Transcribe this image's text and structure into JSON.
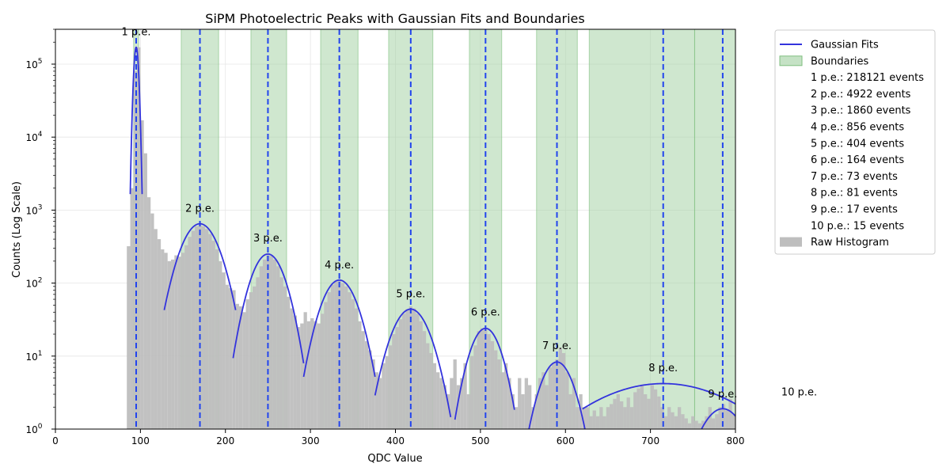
{
  "chart_data": {
    "type": "bar",
    "title": "SiPM Photoelectric Peaks with Gaussian Fits and Boundaries",
    "xlabel": "QDC Value",
    "ylabel": "Counts (Log Scale)",
    "xlim": [
      0,
      800
    ],
    "ylim": [
      1,
      300000
    ],
    "yscale": "log",
    "grid": true,
    "legend_position": "outside-top-right",
    "x_ticks": [
      "0",
      "100",
      "200",
      "300",
      "400",
      "500",
      "600",
      "700",
      "800"
    ],
    "y_ticks": [
      {
        "value": 1,
        "base": "10",
        "exp": "0"
      },
      {
        "value": 10,
        "base": "10",
        "exp": "1"
      },
      {
        "value": 100,
        "base": "10",
        "exp": "2"
      },
      {
        "value": 1000,
        "base": "10",
        "exp": "3"
      },
      {
        "value": 10000,
        "base": "10",
        "exp": "4"
      },
      {
        "value": 100000,
        "base": "10",
        "exp": "5"
      }
    ],
    "colors": {
      "histogram": "#bebebe",
      "fit": "#3333dd",
      "peak_line": "#2244ee",
      "boundary": "#9fcf9f"
    },
    "legend": [
      {
        "label": "Gaussian Fits",
        "kind": "line"
      },
      {
        "label": "Boundaries",
        "kind": "patch-green"
      },
      {
        "label": "1 p.e.: 218121 events",
        "kind": "none"
      },
      {
        "label": "2 p.e.: 4922 events",
        "kind": "none"
      },
      {
        "label": "3 p.e.: 1860 events",
        "kind": "none"
      },
      {
        "label": "4 p.e.: 856 events",
        "kind": "none"
      },
      {
        "label": "5 p.e.: 404 events",
        "kind": "none"
      },
      {
        "label": "6 p.e.: 164 events",
        "kind": "none"
      },
      {
        "label": "7 p.e.: 73 events",
        "kind": "none"
      },
      {
        "label": "8 p.e.: 81 events",
        "kind": "none"
      },
      {
        "label": "9 p.e.: 17 events",
        "kind": "none"
      },
      {
        "label": "10 p.e.: 15 events",
        "kind": "none"
      },
      {
        "label": "Raw Histogram",
        "kind": "patch-gray"
      }
    ],
    "peaks": [
      {
        "label": "1 p.e.",
        "mean": 95,
        "sigma": 2.3,
        "amplitude": 170000,
        "fit_range": [
          88,
          102
        ],
        "label_y": 250000
      },
      {
        "label": "2 p.e.",
        "mean": 170,
        "sigma": 18,
        "amplitude": 650,
        "fit_range": [
          128,
          212
        ],
        "label_y": 950
      },
      {
        "label": "3 p.e.",
        "mean": 250,
        "sigma": 16,
        "amplitude": 250,
        "fit_range": [
          209,
          292
        ],
        "label_y": 370
      },
      {
        "label": "4 p.e.",
        "mean": 334,
        "sigma": 17,
        "amplitude": 110,
        "fit_range": [
          292,
          376
        ],
        "label_y": 160
      },
      {
        "label": "5 p.e.",
        "mean": 418,
        "sigma": 18,
        "amplitude": 44,
        "fit_range": [
          376,
          465
        ],
        "label_y": 64
      },
      {
        "label": "6 p.e.",
        "mean": 506,
        "sigma": 15,
        "amplitude": 24,
        "fit_range": [
          470,
          540
        ],
        "label_y": 36
      },
      {
        "label": "7 p.e.",
        "mean": 590,
        "sigma": 16,
        "amplitude": 8.3,
        "fit_range": [
          556,
          628
        ],
        "label_y": 12.5
      },
      {
        "label": "8 p.e.",
        "mean": 715,
        "sigma": 75,
        "amplitude": 4.2,
        "fit_range": [
          620,
          800
        ],
        "label_y": 6.2
      },
      {
        "label": "9 p.e.",
        "mean": 785,
        "sigma": 22,
        "amplitude": 1.9,
        "fit_range": [
          755,
          800
        ],
        "label_y": 2.7
      },
      {
        "label": "10 p.e.",
        "mean": 875,
        "sigma": 30,
        "amplitude": 1,
        "fit_range": [
          800,
          800
        ],
        "label_y": 2.9
      }
    ],
    "boundaries": [
      {
        "x0": 92,
        "x1": 98
      },
      {
        "x0": 148,
        "x1": 192
      },
      {
        "x0": 230,
        "x1": 272
      },
      {
        "x0": 312,
        "x1": 356
      },
      {
        "x0": 392,
        "x1": 444
      },
      {
        "x0": 487,
        "x1": 525
      },
      {
        "x0": 566,
        "x1": 614
      },
      {
        "x0": 628,
        "x1": 752
      },
      {
        "x0": 752,
        "x1": 800
      }
    ],
    "histogram": {
      "bin_width": 4,
      "bins": [
        [
          84,
          320
        ],
        [
          88,
          2000
        ],
        [
          92,
          80000
        ],
        [
          96,
          170000
        ],
        [
          100,
          17000
        ],
        [
          104,
          6000
        ],
        [
          108,
          1500
        ],
        [
          112,
          900
        ],
        [
          116,
          550
        ],
        [
          120,
          400
        ],
        [
          124,
          290
        ],
        [
          128,
          260
        ],
        [
          132,
          200
        ],
        [
          136,
          210
        ],
        [
          140,
          240
        ],
        [
          144,
          230
        ],
        [
          148,
          260
        ],
        [
          152,
          330
        ],
        [
          156,
          430
        ],
        [
          160,
          520
        ],
        [
          164,
          600
        ],
        [
          168,
          620
        ],
        [
          172,
          600
        ],
        [
          176,
          550
        ],
        [
          180,
          470
        ],
        [
          184,
          380
        ],
        [
          188,
          290
        ],
        [
          192,
          200
        ],
        [
          196,
          140
        ],
        [
          200,
          95
        ],
        [
          204,
          85
        ],
        [
          208,
          80
        ],
        [
          212,
          52
        ],
        [
          216,
          48
        ],
        [
          220,
          40
        ],
        [
          224,
          60
        ],
        [
          228,
          75
        ],
        [
          232,
          90
        ],
        [
          236,
          120
        ],
        [
          240,
          170
        ],
        [
          244,
          210
        ],
        [
          248,
          240
        ],
        [
          252,
          235
        ],
        [
          256,
          210
        ],
        [
          260,
          170
        ],
        [
          264,
          120
        ],
        [
          268,
          90
        ],
        [
          272,
          65
        ],
        [
          276,
          45
        ],
        [
          280,
          36
        ],
        [
          284,
          25
        ],
        [
          288,
          28
        ],
        [
          292,
          40
        ],
        [
          296,
          30
        ],
        [
          300,
          33
        ],
        [
          304,
          30
        ],
        [
          308,
          28
        ],
        [
          312,
          38
        ],
        [
          316,
          55
        ],
        [
          320,
          75
        ],
        [
          324,
          95
        ],
        [
          328,
          105
        ],
        [
          332,
          108
        ],
        [
          336,
          100
        ],
        [
          340,
          90
        ],
        [
          344,
          75
        ],
        [
          348,
          60
        ],
        [
          352,
          45
        ],
        [
          356,
          30
        ],
        [
          360,
          22
        ],
        [
          364,
          16
        ],
        [
          368,
          12
        ],
        [
          372,
          9
        ],
        [
          376,
          6
        ],
        [
          380,
          5
        ],
        [
          384,
          8
        ],
        [
          388,
          10
        ],
        [
          392,
          14
        ],
        [
          396,
          20
        ],
        [
          400,
          25
        ],
        [
          404,
          32
        ],
        [
          408,
          38
        ],
        [
          412,
          44
        ],
        [
          416,
          48
        ],
        [
          420,
          45
        ],
        [
          424,
          38
        ],
        [
          428,
          30
        ],
        [
          432,
          22
        ],
        [
          436,
          15
        ],
        [
          440,
          11
        ],
        [
          444,
          8
        ],
        [
          448,
          6
        ],
        [
          452,
          5
        ],
        [
          456,
          4
        ],
        [
          460,
          3
        ],
        [
          464,
          5
        ],
        [
          468,
          9
        ],
        [
          472,
          4
        ],
        [
          476,
          5
        ],
        [
          480,
          8
        ],
        [
          484,
          3
        ],
        [
          488,
          10
        ],
        [
          492,
          14
        ],
        [
          496,
          22
        ],
        [
          500,
          24
        ],
        [
          504,
          23
        ],
        [
          508,
          20
        ],
        [
          512,
          16
        ],
        [
          516,
          12
        ],
        [
          520,
          9
        ],
        [
          524,
          6
        ],
        [
          528,
          8
        ],
        [
          532,
          5
        ],
        [
          536,
          3
        ],
        [
          540,
          2
        ],
        [
          544,
          5
        ],
        [
          548,
          3
        ],
        [
          552,
          5
        ],
        [
          556,
          4
        ],
        [
          560,
          2
        ],
        [
          564,
          3
        ],
        [
          568,
          5
        ],
        [
          572,
          6
        ],
        [
          576,
          4
        ],
        [
          580,
          7
        ],
        [
          584,
          8
        ],
        [
          588,
          9
        ],
        [
          592,
          13
        ],
        [
          596,
          11
        ],
        [
          600,
          6
        ],
        [
          604,
          3
        ],
        [
          608,
          5
        ],
        [
          612,
          2
        ],
        [
          616,
          3
        ],
        [
          620,
          2
        ],
        [
          624,
          2
        ],
        [
          628,
          1.5
        ],
        [
          632,
          1.8
        ],
        [
          636,
          1.5
        ],
        [
          640,
          2
        ],
        [
          644,
          1.5
        ],
        [
          648,
          2
        ],
        [
          652,
          2.2
        ],
        [
          656,
          2.6
        ],
        [
          660,
          3
        ],
        [
          664,
          2.4
        ],
        [
          668,
          2
        ],
        [
          672,
          2.7
        ],
        [
          676,
          2
        ],
        [
          680,
          3.2
        ],
        [
          684,
          3.6
        ],
        [
          688,
          4
        ],
        [
          692,
          3
        ],
        [
          696,
          2.6
        ],
        [
          700,
          4
        ],
        [
          704,
          3.5
        ],
        [
          708,
          2.8
        ],
        [
          712,
          2
        ],
        [
          716,
          1.5
        ],
        [
          720,
          2
        ],
        [
          724,
          1.7
        ],
        [
          728,
          1.5
        ],
        [
          732,
          2
        ],
        [
          736,
          1.6
        ],
        [
          740,
          1.4
        ],
        [
          744,
          1.2
        ],
        [
          748,
          1.5
        ],
        [
          752,
          1.3
        ],
        [
          756,
          1.2
        ],
        [
          760,
          1.3
        ],
        [
          764,
          1.5
        ],
        [
          768,
          2
        ],
        [
          772,
          1.4
        ],
        [
          776,
          1.6
        ],
        [
          780,
          2
        ],
        [
          784,
          2.2
        ],
        [
          788,
          1.8
        ],
        [
          792,
          2.6
        ],
        [
          796,
          1.6
        ]
      ]
    }
  }
}
